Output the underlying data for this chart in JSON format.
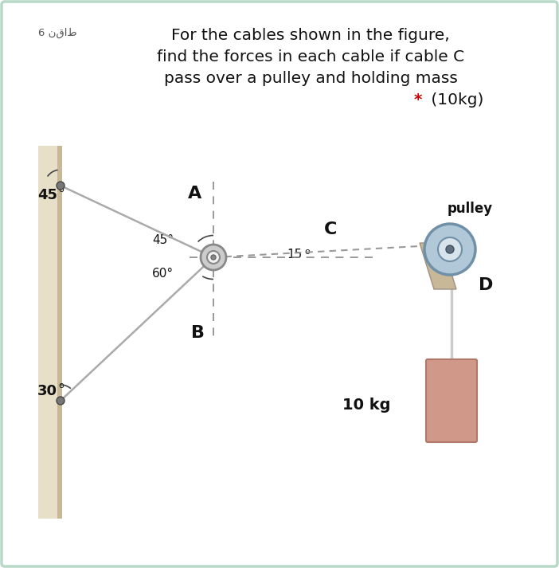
{
  "bg_color": "#ffffff",
  "border_color": "#b8d8c8",
  "title_line1": "For the cables shown in the figure,",
  "title_line2": "find the forces in each cable if cable C",
  "title_line3": "pass over a pulley and holding mass",
  "title_line4_star": "*",
  "title_line4_rest": " (10kg)",
  "points_label": "6 نقاط",
  "wall_color": "#e8dfc8",
  "wall_shadow": "#c8b898",
  "cable_color": "#aaaaaa",
  "joint_color": "#999999",
  "pulley_bracket_color": "#c8b898",
  "pulley_wheel_outer": "#b0c8d8",
  "pulley_wheel_inner": "#d8e4ec",
  "pulley_center_color": "#607080",
  "mass_color": "#d09888",
  "mass_edge_color": "#b07868",
  "rope_color": "#cccccc",
  "dashed_color": "#888888",
  "text_color": "#111111",
  "red_color": "#cc0000"
}
